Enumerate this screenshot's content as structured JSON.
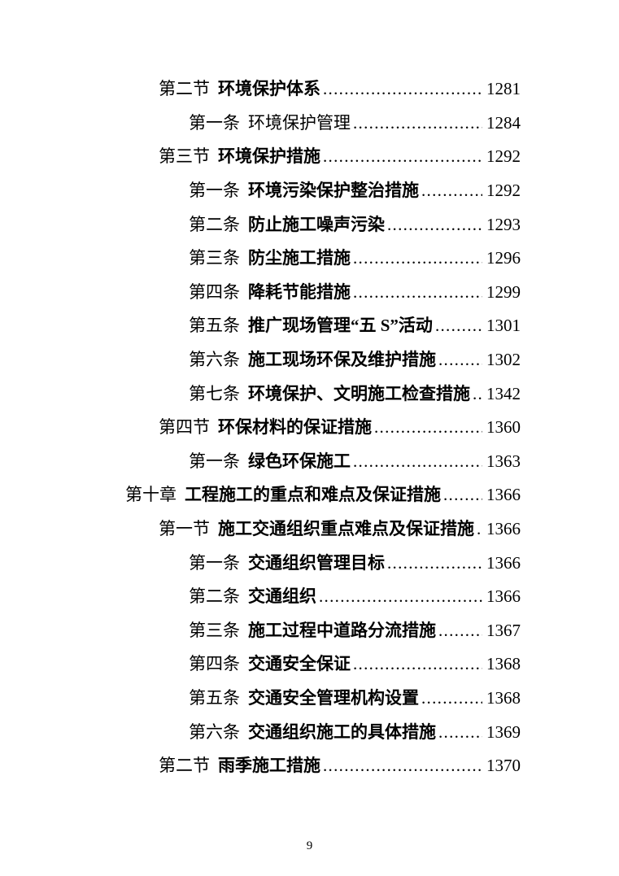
{
  "document": {
    "kind": "table-of-contents-page",
    "background_color": "#ffffff",
    "text_color": "#000000",
    "footer": {
      "page_number": "9"
    }
  },
  "toc": {
    "entries": [
      {
        "level": "section",
        "num": "第二节",
        "title": "环境保护体系",
        "page": "1281",
        "bold": true
      },
      {
        "level": "item",
        "num": "第一条",
        "title": "环境保护管理",
        "page": "1284",
        "bold": false
      },
      {
        "level": "section",
        "num": "第三节",
        "title": "环境保护措施",
        "page": "1292",
        "bold": true
      },
      {
        "level": "item",
        "num": "第一条",
        "title": "环境污染保护整治措施",
        "page": "1292",
        "bold": true
      },
      {
        "level": "item",
        "num": "第二条",
        "title": "防止施工噪声污染",
        "page": "1293",
        "bold": true
      },
      {
        "level": "item",
        "num": "第三条",
        "title": "防尘施工措施",
        "page": "1296",
        "bold": true
      },
      {
        "level": "item",
        "num": "第四条",
        "title": "降耗节能措施",
        "page": "1299",
        "bold": true
      },
      {
        "level": "item",
        "num": "第五条",
        "title": "推广现场管理“五 S”活动",
        "page": "1301",
        "bold": true
      },
      {
        "level": "item",
        "num": "第六条",
        "title": "施工现场环保及维护措施",
        "page": "1302",
        "bold": true
      },
      {
        "level": "item",
        "num": "第七条",
        "title": "环境保护、文明施工检查措施",
        "page": "1342",
        "bold": true
      },
      {
        "level": "section",
        "num": "第四节",
        "title": "环保材料的保证措施",
        "page": "1360",
        "bold": true
      },
      {
        "level": "item",
        "num": "第一条",
        "title": "绿色环保施工",
        "page": "1363",
        "bold": true
      },
      {
        "level": "chapter",
        "num": "第十章",
        "title": "工程施工的重点和难点及保证措施",
        "page": "1366",
        "bold": true
      },
      {
        "level": "section",
        "num": "第一节",
        "title": "施工交通组织重点难点及保证措施",
        "page": "1366",
        "bold": true
      },
      {
        "level": "item",
        "num": "第一条",
        "title": "交通组织管理目标",
        "page": "1366",
        "bold": true
      },
      {
        "level": "item",
        "num": "第二条",
        "title": "交通组织",
        "page": "1366",
        "bold": true
      },
      {
        "level": "item",
        "num": "第三条",
        "title": "施工过程中道路分流措施",
        "page": "1367",
        "bold": true
      },
      {
        "level": "item",
        "num": "第四条",
        "title": "交通安全保证",
        "page": "1368",
        "bold": true
      },
      {
        "level": "item",
        "num": "第五条",
        "title": "交通安全管理机构设置",
        "page": "1368",
        "bold": true
      },
      {
        "level": "item",
        "num": "第六条",
        "title": "交通组织施工的具体措施",
        "page": "1369",
        "bold": true
      },
      {
        "level": "section",
        "num": "第二节",
        "title": "雨季施工措施",
        "page": "1370",
        "bold": true
      }
    ]
  }
}
